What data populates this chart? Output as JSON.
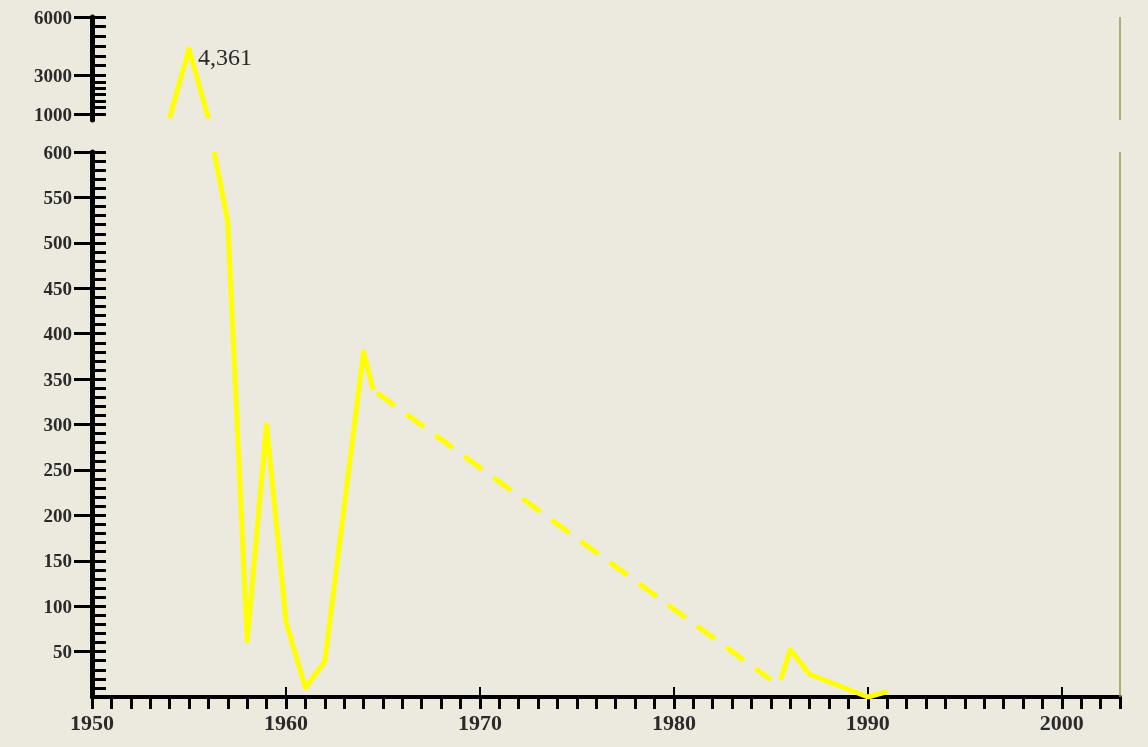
{
  "chart_data": [
    {
      "type": "line",
      "x": [
        1954,
        1955,
        1956
      ],
      "values": [
        800,
        4361,
        800
      ],
      "value_labels": [
        null,
        "4,361",
        null
      ],
      "color": "#ffff00",
      "xlim": [
        1950,
        2003
      ],
      "ylim": [
        700,
        6000
      ],
      "yticks": [
        1000,
        3000,
        6000
      ],
      "tick_labels": "y",
      "grid": false,
      "marker": "none",
      "line_style": "solid",
      "ref_lines": [
        {
          "axis": "x",
          "value": 2003,
          "color": "#9a9a50"
        }
      ]
    },
    {
      "type": "line",
      "xlim": [
        1950,
        2003
      ],
      "ylim": [
        0,
        600
      ],
      "xticks": [
        1950,
        1960,
        1970,
        1980,
        1990,
        2000
      ],
      "yticks": [
        50,
        100,
        150,
        200,
        250,
        300,
        350,
        400,
        450,
        500,
        550,
        600
      ],
      "grid": false,
      "marker": "none",
      "ref_lines": [
        {
          "axis": "x",
          "value": 2003,
          "color": "#9a9a50"
        }
      ],
      "series": [
        {
          "x": [
            1956.3,
            1957,
            1958,
            1959,
            1960,
            1961,
            1962,
            1964,
            1964.5
          ],
          "values": [
            600,
            523,
            62,
            300,
            83,
            10,
            39,
            380,
            338
          ],
          "color": "#ffff00",
          "line_style": "solid"
        },
        {
          "x": [
            1964.7,
            1985
          ],
          "values": [
            335,
            19
          ],
          "color": "#ffff00",
          "line_style": "dashed"
        },
        {
          "x": [
            1985.5,
            1986,
            1987,
            1990,
            1991
          ],
          "values": [
            19,
            52,
            25,
            0,
            6
          ],
          "color": "#ffff00",
          "line_style": "solid"
        }
      ]
    }
  ]
}
